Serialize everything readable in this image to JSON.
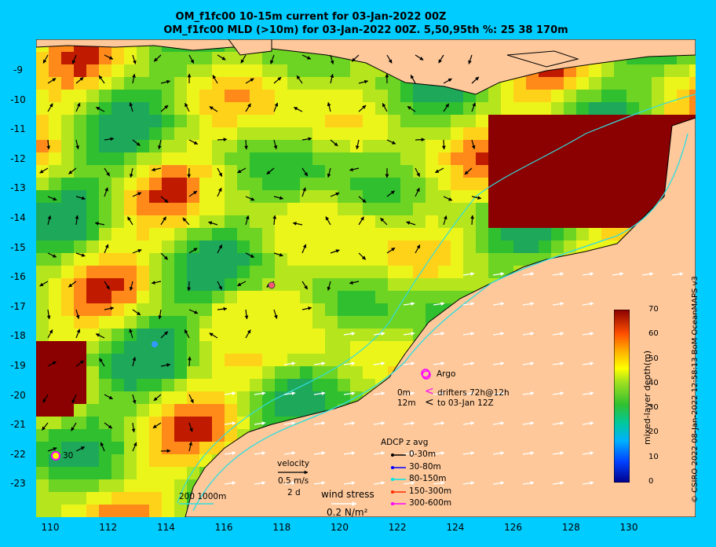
{
  "header": {
    "title_line1": "OM_f1fc00 10-15m current for 03-Jan-2022 00Z",
    "title_line2": "OM_f1fc00 MLD (>10m) for 03-Jan-2022 00Z. 5,50,95th %: 25   38  170m"
  },
  "axes": {
    "y_ticks": [
      "-9",
      "-10",
      "-11",
      "-12",
      "-13",
      "-14",
      "-15",
      "-16",
      "-17",
      "-18",
      "-19",
      "-20",
      "-21",
      "-22",
      "-23"
    ],
    "x_ticks": [
      "110",
      "112",
      "114",
      "116",
      "118",
      "120",
      "122",
      "124",
      "126",
      "128",
      "130"
    ]
  },
  "colorbar": {
    "label": "mixed-layer depth(m)",
    "ticks": [
      "0",
      "10",
      "20",
      "30",
      "40",
      "50",
      "60",
      "70"
    ]
  },
  "legend": {
    "argo": "Argo",
    "drifter_depth_0": "0m",
    "drifter_depth_12": "12m",
    "drifter_text_1": "drifters 72h@12h",
    "drifter_text_2": "to 03-Jan 12Z",
    "adcp_title": "ADCP z avg",
    "adcp_rows": [
      {
        "label": "0-30m",
        "color": "#000000"
      },
      {
        "label": "30-80m",
        "color": "#0000ff"
      },
      {
        "label": "80-150m",
        "color": "#00e5e5"
      },
      {
        "label": "150-300m",
        "color": "#ff2a00"
      },
      {
        "label": "300-600m",
        "color": "#ff00ff"
      }
    ],
    "velocity_label": "velocity",
    "velocity_value": "0.5 m/s",
    "velocity_time": "2 d",
    "wind_label": "wind stress",
    "wind_value": "0.2 N/m²",
    "isobaths": "200  1000m",
    "marker_label": "30"
  },
  "credit": "© CSIRO 2022   08-Jan-2022 12:58:13 BoM OceanMAPS v3",
  "colors": {
    "land": "#fec89a",
    "background": "#00ccff",
    "current_arrows": "#000000",
    "wind_arrows": "#ffffff",
    "isobath": "#33dddd"
  }
}
